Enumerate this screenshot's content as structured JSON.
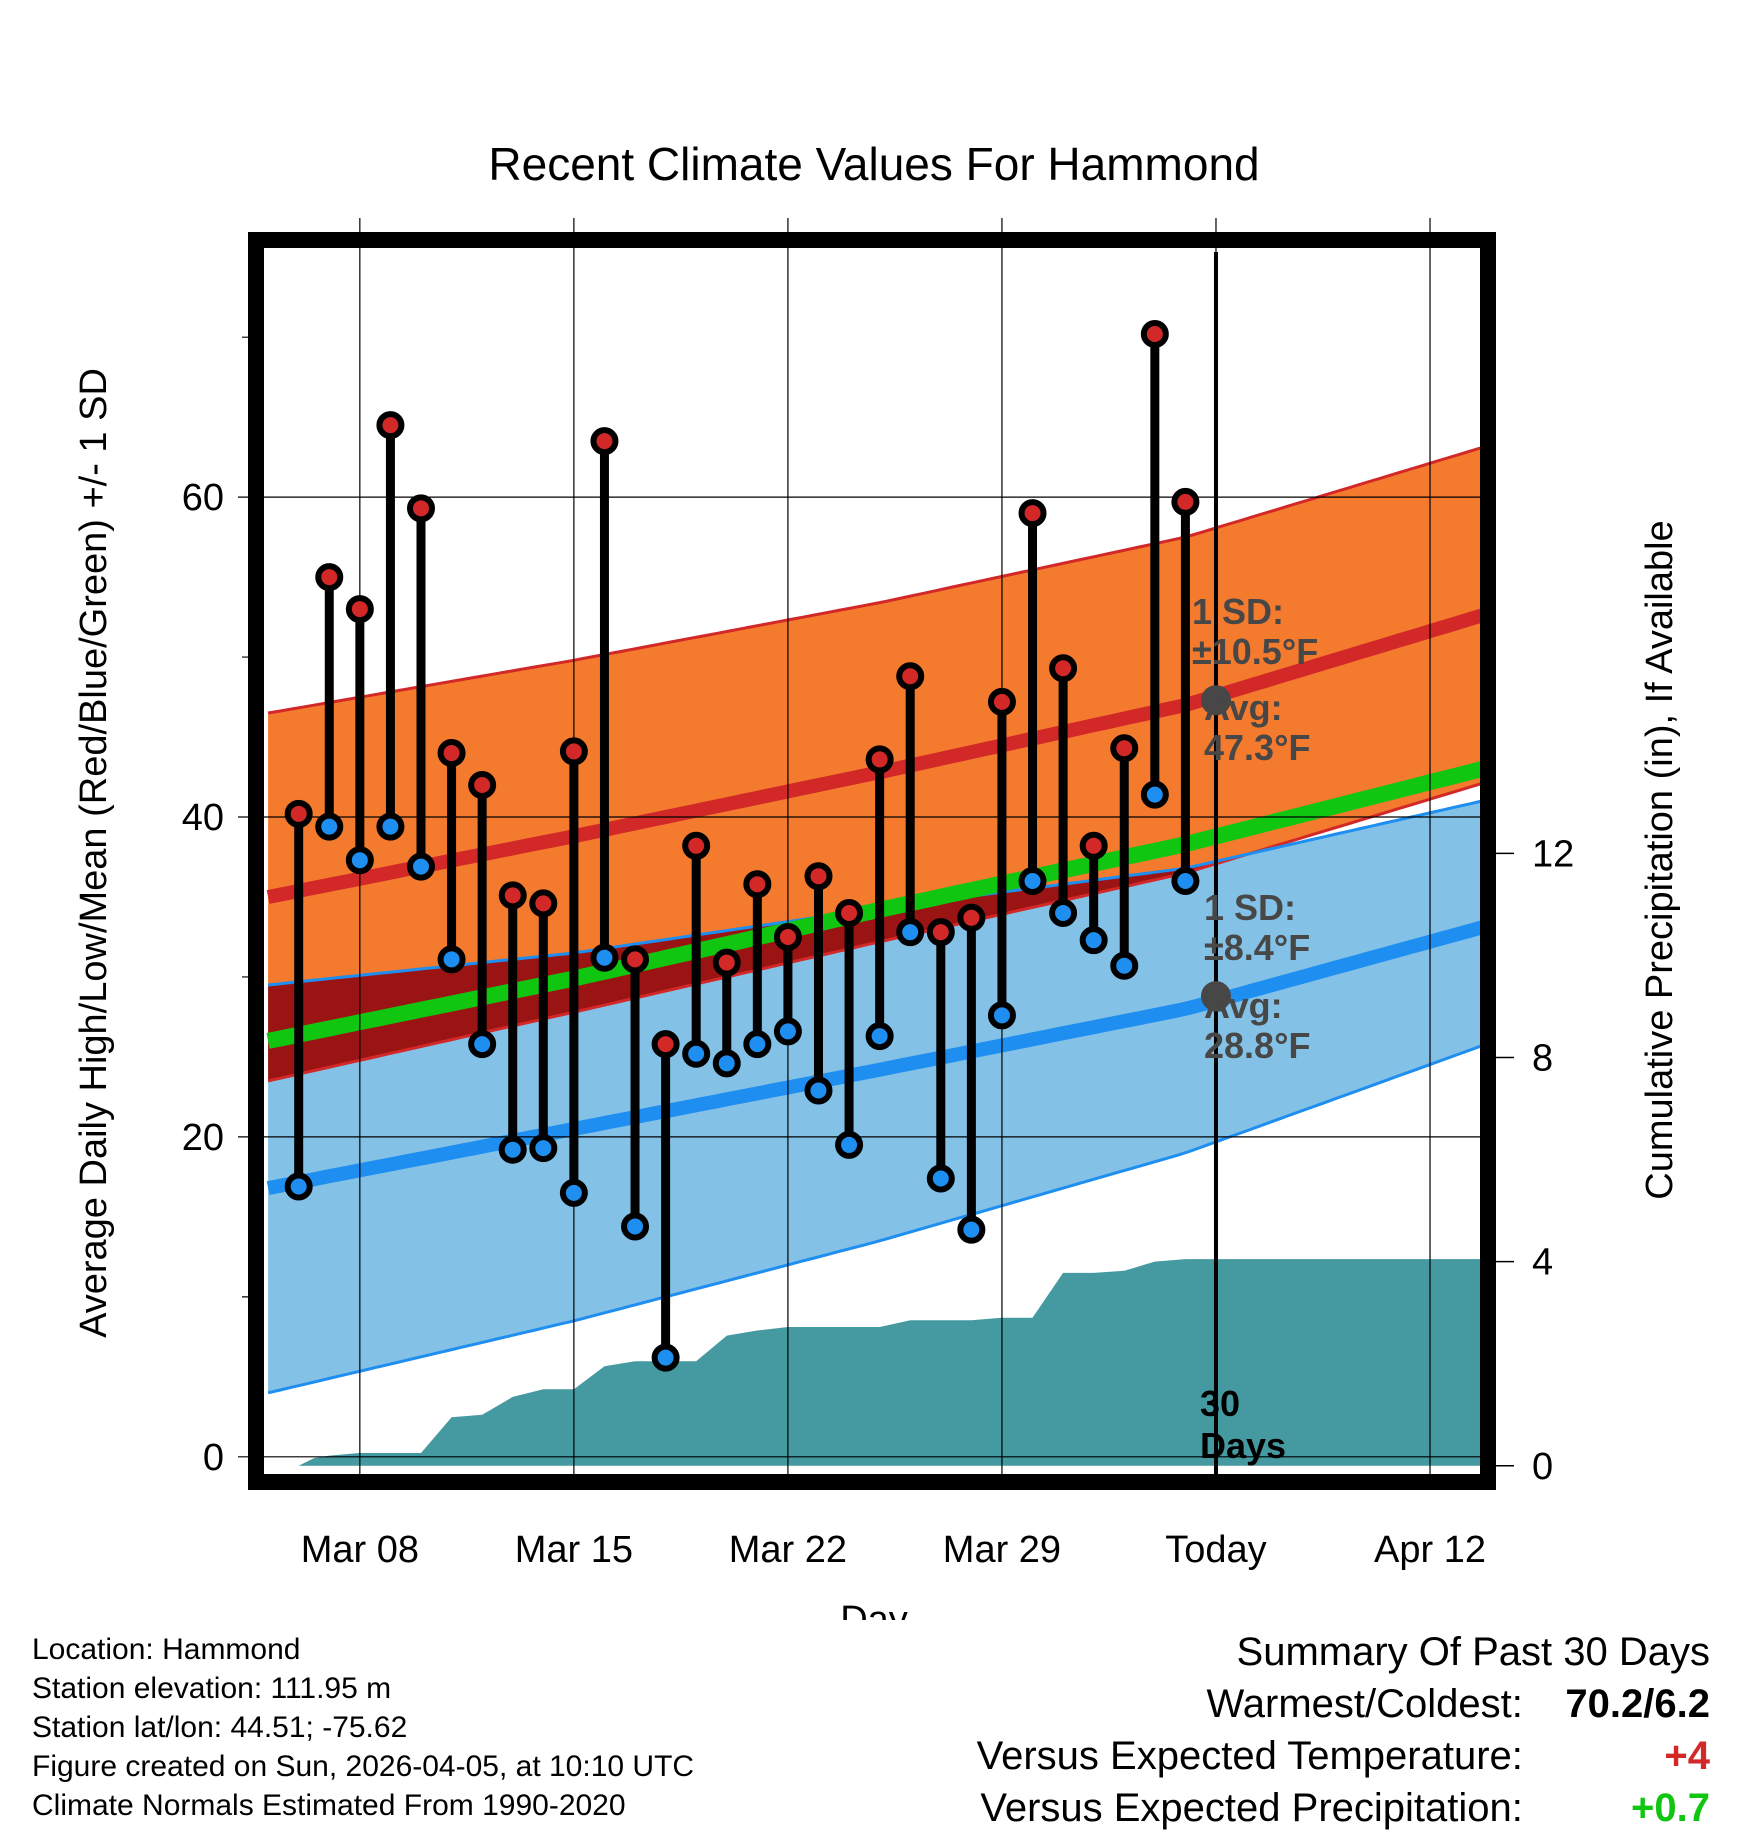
{
  "title": "Recent Climate Values For Hammond",
  "chart_data": {
    "type": "line",
    "title": "Recent Climate Values For Hammond",
    "xlabel": "Day",
    "ylabel": "Average Daily High/Low/Mean (Red/Blue/Green) +/- 1 SD",
    "y2label": "Cumulative Precipitation (in), If Available",
    "x_range": [
      -0.2,
      39.7
    ],
    "ylim": [
      -1.2,
      75.7
    ],
    "y2lim": [
      -0.2,
      23.9
    ],
    "x_ticks": [
      {
        "x": 3,
        "label": "Mar 08"
      },
      {
        "x": 10,
        "label": "Mar 15"
      },
      {
        "x": 17,
        "label": "Mar 22"
      },
      {
        "x": 24,
        "label": "Mar 29"
      },
      {
        "x": 31,
        "label": "Today"
      },
      {
        "x": 38,
        "label": "Apr 12"
      }
    ],
    "y_ticks": [
      0,
      20,
      40,
      60
    ],
    "y2_ticks": [
      0,
      4,
      8,
      12
    ],
    "y_minor_ticks": [
      10,
      30,
      50,
      70
    ],
    "today_x": 31,
    "normals": {
      "x": [
        0,
        10,
        20,
        30,
        39.7
      ],
      "high_mean": [
        35.0,
        38.8,
        42.8,
        47.0,
        52.6
      ],
      "high_plus_sd": [
        46.5,
        49.8,
        53.4,
        57.5,
        63.1
      ],
      "low_mean": [
        16.8,
        20.5,
        24.2,
        28.0,
        33.1
      ],
      "low_plus_sd": [
        29.5,
        31.5,
        34.3,
        36.8,
        41.0
      ],
      "low_minus_sd": [
        4.0,
        8.5,
        13.5,
        19.0,
        25.7
      ],
      "mean": [
        26.0,
        29.9,
        34.2,
        38.3,
        43.0
      ]
    },
    "high_series": [
      40.2,
      55.0,
      53.0,
      64.5,
      59.3,
      44.0,
      42.0,
      35.1,
      34.6,
      44.1,
      63.5,
      31.1,
      25.8,
      38.2,
      30.9,
      35.8,
      32.5,
      36.3,
      34.0,
      43.6,
      48.8,
      32.8,
      33.7,
      47.2,
      59.0,
      49.3,
      38.2,
      44.3,
      70.2,
      59.7
    ],
    "low_series": [
      16.9,
      39.4,
      37.3,
      39.4,
      36.9,
      31.1,
      25.8,
      19.2,
      19.3,
      16.5,
      31.2,
      14.4,
      6.2,
      25.2,
      24.6,
      25.8,
      26.6,
      22.9,
      19.5,
      26.3,
      32.8,
      17.4,
      14.2,
      27.6,
      36.0,
      34.0,
      32.3,
      30.7,
      41.4,
      36.0
    ],
    "precip_cumulative": {
      "x": [
        0,
        1,
        1.5,
        2,
        3,
        4,
        5,
        6,
        7,
        8,
        9,
        10,
        11,
        12,
        13,
        14,
        15,
        16,
        17,
        18,
        19,
        20,
        21,
        22,
        23,
        24,
        25,
        26,
        27,
        28,
        29,
        30,
        31,
        39.7
      ],
      "values": [
        0,
        0,
        0.15,
        0.2,
        0.25,
        0.25,
        0.25,
        0.95,
        1.0,
        1.35,
        1.5,
        1.5,
        1.95,
        2.05,
        2.05,
        2.05,
        2.55,
        2.65,
        2.72,
        2.72,
        2.72,
        2.72,
        2.85,
        2.85,
        2.85,
        2.9,
        2.9,
        3.78,
        3.78,
        3.82,
        4.0,
        4.05,
        4.05,
        4.05
      ]
    },
    "annotations": {
      "high_sd_label": "1 SD:",
      "high_sd_value": "±10.5°F",
      "high_avg_label": "Avg:",
      "high_avg_value": "47.3°F",
      "high_avg": 47.3,
      "low_sd_label": "1 SD:",
      "low_sd_value": "±8.4°F",
      "low_avg_label": "Avg:",
      "low_avg_value": "28.8°F",
      "low_avg": 28.8,
      "days_number": "30",
      "days_word": "Days"
    },
    "colors": {
      "high_band": "#f47a2e",
      "high_line": "#d22828",
      "low_band": "#84c1e6",
      "low_line": "#1e8ef0",
      "overlap_band": "#9a1414",
      "mean_line": "#11c611",
      "precip": "#449aa0",
      "high_dot": "#d22828",
      "low_dot": "#1e8ef0",
      "avg_marker": "#474747",
      "annotation_text": "#474747"
    }
  },
  "info": {
    "location": "Location: Hammond",
    "elevation": "Station elevation: 111.95 m",
    "latlon": "Station lat/lon: 44.51; -75.62",
    "created": "Figure created on Sun, 2026-04-05, at 10:10 UTC",
    "normals": "Climate Normals Estimated From 1990-2020"
  },
  "summary": {
    "title": "Summary Of Past 30 Days",
    "warmest_label": "Warmest/Coldest:",
    "warmest_value": "70.2/6.2",
    "temp_label": "Versus Expected Temperature:",
    "temp_value": "+4",
    "temp_color": "#d22828",
    "precip_label": "Versus Expected Precipitation:",
    "precip_value": "+0.7",
    "precip_color": "#11c611"
  }
}
